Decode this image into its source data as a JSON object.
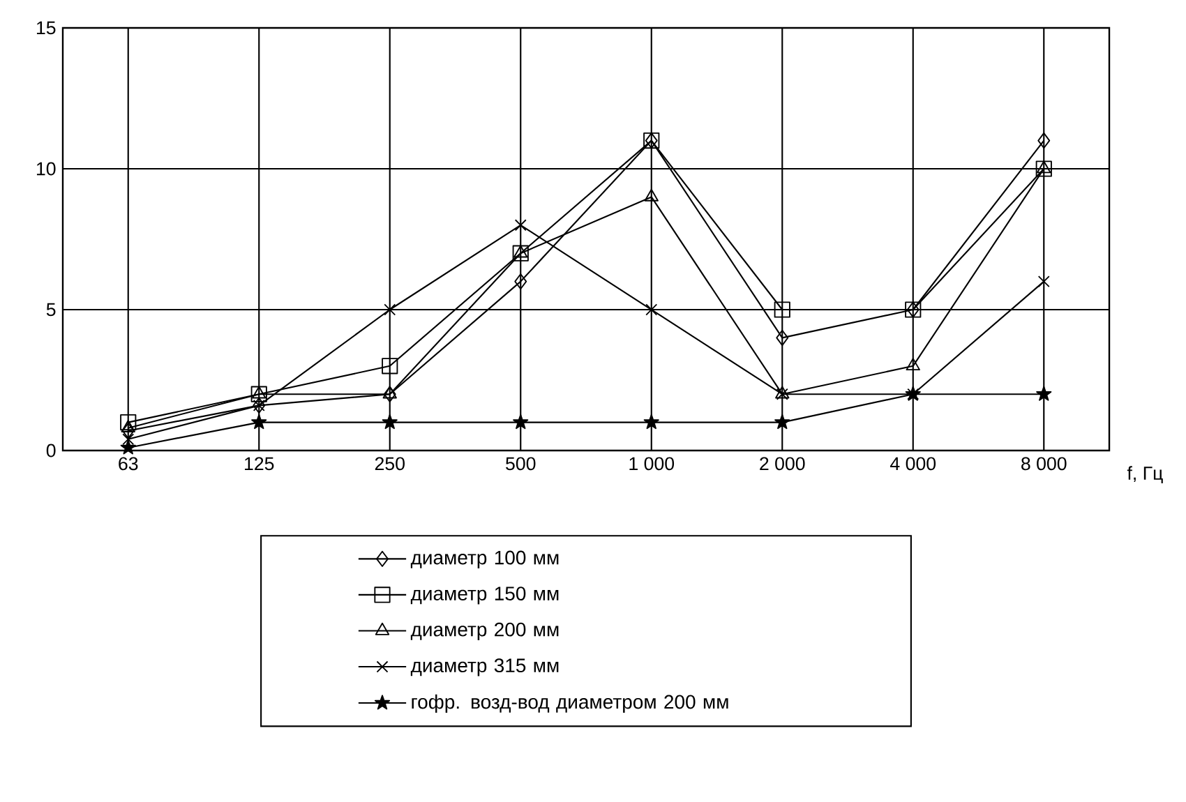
{
  "chart_data": {
    "type": "line",
    "xlabel": "f, Гц",
    "categories": [
      "63",
      "125",
      "250",
      "500",
      "1 000",
      "2 000",
      "4 000",
      "8 000"
    ],
    "ylim": [
      0,
      15
    ],
    "yticks": [
      0,
      5,
      10,
      15
    ],
    "grid": true,
    "legend": "bottom",
    "series": [
      {
        "name": "диаметр 100 мм",
        "color": "#000000",
        "marker": "diamond",
        "values": [
          0.7,
          1.6,
          2,
          6,
          11,
          4,
          5,
          11
        ]
      },
      {
        "name": "диаметр 150 мм",
        "color": "#000000",
        "marker": "square",
        "values": [
          1,
          2,
          3,
          7,
          11,
          5,
          5,
          10
        ]
      },
      {
        "name": "диаметр 200 мм",
        "color": "#000000",
        "marker": "triangle",
        "values": [
          0.8,
          2,
          2,
          7,
          9,
          2,
          3,
          10
        ]
      },
      {
        "name": "диаметр 315 мм",
        "color": "#000000",
        "marker": "cross",
        "values": [
          0.4,
          1.6,
          5,
          8,
          5,
          2,
          2,
          6
        ]
      },
      {
        "name": "гофр. возд-вод диаметром 200 мм",
        "color": "#000000",
        "marker": "star",
        "values": [
          0.1,
          1,
          1,
          1,
          1,
          1,
          2,
          2
        ]
      }
    ]
  }
}
